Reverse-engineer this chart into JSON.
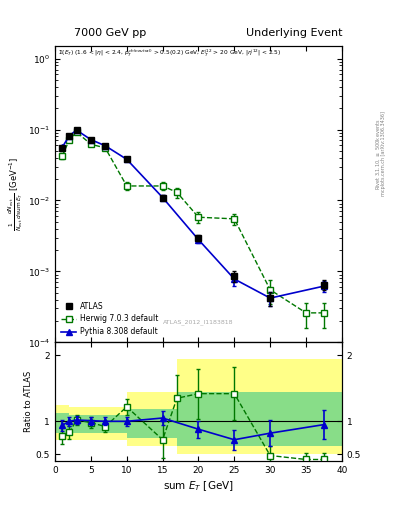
{
  "title_left": "7000 GeV pp",
  "title_right": "Underlying Event",
  "annotation": "ATLAS_2012_I1183818",
  "xlabel": "sum $E_T$ [GeV]",
  "right_label1": "mcplots.cern.ch [arXiv:1306.3436]",
  "right_label2": "Rivet 3.1.10, ≥ 500k events",
  "atlas_x": [
    1,
    2,
    3,
    5,
    7,
    10,
    15,
    20,
    25,
    30,
    37.5
  ],
  "atlas_y": [
    0.055,
    0.082,
    0.098,
    0.072,
    0.058,
    0.038,
    0.011,
    0.003,
    0.00085,
    0.00042,
    0.00065
  ],
  "atlas_yerr": [
    0.004,
    0.005,
    0.005,
    0.004,
    0.003,
    0.002,
    0.001,
    0.0003,
    0.00015,
    0.0001,
    0.0001
  ],
  "herwig_x": [
    1,
    2,
    3,
    5,
    7,
    10,
    15,
    17,
    20,
    25,
    30,
    35,
    37.5
  ],
  "herwig_y": [
    0.042,
    0.072,
    0.092,
    0.062,
    0.055,
    0.016,
    0.016,
    0.013,
    0.0058,
    0.0055,
    0.00055,
    0.00026,
    0.00026
  ],
  "herwig_yerr": [
    0.004,
    0.005,
    0.005,
    0.004,
    0.003,
    0.002,
    0.002,
    0.002,
    0.001,
    0.001,
    0.0002,
    0.0001,
    0.0001
  ],
  "pythia_x": [
    1,
    2,
    3,
    5,
    7,
    10,
    15,
    20,
    25,
    30,
    37.5
  ],
  "pythia_y": [
    0.056,
    0.082,
    0.098,
    0.072,
    0.059,
    0.038,
    0.011,
    0.0028,
    0.00078,
    0.00042,
    0.00062
  ],
  "pythia_yerr": [
    0.003,
    0.004,
    0.004,
    0.003,
    0.003,
    0.002,
    0.001,
    0.0003,
    0.00015,
    0.0001,
    0.0001
  ],
  "ratio_herwig_x": [
    1,
    2,
    3,
    5,
    7,
    10,
    15,
    17,
    20,
    25,
    30,
    35,
    37.5
  ],
  "ratio_herwig_y": [
    0.78,
    0.83,
    1.02,
    0.98,
    0.92,
    1.22,
    0.72,
    1.35,
    1.42,
    1.42,
    0.48,
    0.42,
    0.42
  ],
  "ratio_herwig_yerr": [
    0.12,
    0.1,
    0.08,
    0.08,
    0.08,
    0.12,
    0.28,
    0.35,
    0.38,
    0.4,
    0.15,
    0.1,
    0.1
  ],
  "ratio_pythia_x": [
    1,
    2,
    3,
    5,
    7,
    10,
    15,
    20,
    25,
    30,
    37.5
  ],
  "ratio_pythia_y": [
    0.94,
    1.0,
    1.02,
    1.01,
    1.0,
    1.0,
    1.05,
    0.88,
    0.72,
    0.82,
    0.95
  ],
  "ratio_pythia_yerr": [
    0.08,
    0.07,
    0.06,
    0.06,
    0.06,
    0.07,
    0.1,
    0.13,
    0.15,
    0.2,
    0.22
  ],
  "atlas_color": "#000000",
  "herwig_color": "#007700",
  "pythia_color": "#0000cc",
  "ylim_main": [
    0.0001,
    1.5
  ],
  "xlim": [
    0,
    40
  ],
  "band_x_edges": [
    0,
    2,
    5,
    10,
    17,
    25,
    30,
    40
  ],
  "y_yellow_top": [
    1.25,
    1.22,
    1.22,
    1.45,
    1.95,
    1.95,
    1.95
  ],
  "y_yellow_bot": [
    0.72,
    0.72,
    0.72,
    0.62,
    0.5,
    0.5,
    0.5
  ],
  "y_green_top": [
    1.12,
    1.1,
    1.1,
    1.18,
    1.45,
    1.45,
    1.45
  ],
  "y_green_bot": [
    0.82,
    0.82,
    0.82,
    0.75,
    0.62,
    0.62,
    0.62
  ]
}
